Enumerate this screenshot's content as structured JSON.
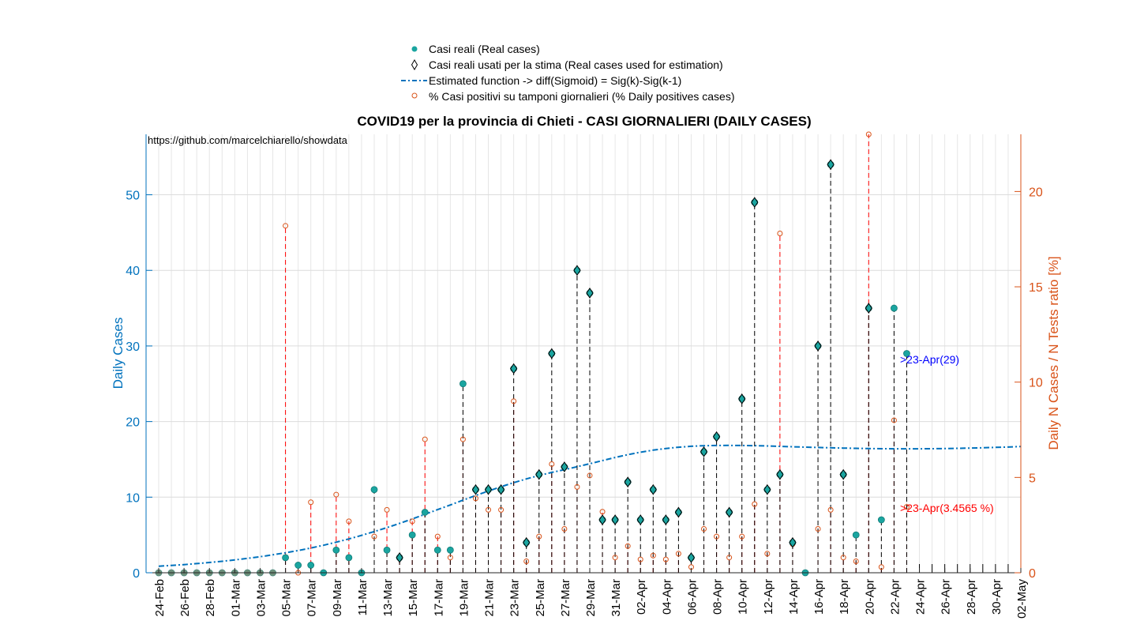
{
  "chart_data": {
    "type": "scatter",
    "title": "COVID19 per la provincia di Chieti - CASI GIORNALIERI (DAILY CASES)",
    "source_text": "https://github.com/marcelchiarello/showdata",
    "ylabel_left": "Daily Cases",
    "ylabel_right": "Daily N Cases / N Tests ratio [%]",
    "ylim_left": [
      0,
      58
    ],
    "ylim_right": [
      0,
      23
    ],
    "yticks_left": [
      "0",
      "10",
      "20",
      "30",
      "40",
      "50"
    ],
    "yticks_right": [
      "0",
      "5",
      "10",
      "15",
      "20"
    ],
    "grid": true,
    "legend_position": "top-center",
    "x_dates": [
      "24-Feb",
      "25-Feb",
      "26-Feb",
      "27-Feb",
      "28-Feb",
      "29-Feb",
      "01-Mar",
      "02-Mar",
      "03-Mar",
      "04-Mar",
      "05-Mar",
      "06-Mar",
      "07-Mar",
      "08-Mar",
      "09-Mar",
      "10-Mar",
      "11-Mar",
      "12-Mar",
      "13-Mar",
      "14-Mar",
      "15-Mar",
      "16-Mar",
      "17-Mar",
      "18-Mar",
      "19-Mar",
      "20-Mar",
      "21-Mar",
      "22-Mar",
      "23-Mar",
      "24-Mar",
      "25-Mar",
      "26-Mar",
      "27-Mar",
      "28-Mar",
      "29-Mar",
      "30-Mar",
      "31-Mar",
      "01-Apr",
      "02-Apr",
      "03-Apr",
      "04-Apr",
      "05-Apr",
      "06-Apr",
      "07-Apr",
      "08-Apr",
      "09-Apr",
      "10-Apr",
      "11-Apr",
      "12-Apr",
      "13-Apr",
      "14-Apr",
      "15-Apr",
      "16-Apr",
      "17-Apr",
      "18-Apr",
      "19-Apr",
      "20-Apr",
      "21-Apr",
      "22-Apr",
      "23-Apr",
      "24-Apr",
      "25-Apr",
      "26-Apr",
      "27-Apr",
      "28-Apr",
      "29-Apr",
      "30-Apr",
      "01-May",
      "02-May"
    ],
    "x_tick_labels": [
      "24-Feb",
      "26-Feb",
      "28-Feb",
      "01-Mar",
      "03-Mar",
      "05-Mar",
      "07-Mar",
      "09-Mar",
      "11-Mar",
      "13-Mar",
      "15-Mar",
      "17-Mar",
      "19-Mar",
      "21-Mar",
      "23-Mar",
      "25-Mar",
      "27-Mar",
      "29-Mar",
      "31-Mar",
      "02-Apr",
      "04-Apr",
      "06-Apr",
      "08-Apr",
      "10-Apr",
      "12-Apr",
      "14-Apr",
      "16-Apr",
      "18-Apr",
      "20-Apr",
      "22-Apr",
      "24-Apr",
      "26-Apr",
      "28-Apr",
      "30-Apr",
      "02-May"
    ],
    "series": [
      {
        "name": "Casi reali (Real cases)",
        "color": "#1AA5A0",
        "values": [
          0,
          0,
          0,
          0,
          0,
          0,
          0,
          0,
          0,
          0,
          2,
          1,
          1,
          0,
          3,
          2,
          0,
          11,
          3,
          2,
          5,
          8,
          3,
          3,
          25,
          11,
          11,
          11,
          27,
          4,
          13,
          29,
          14,
          40,
          37,
          7,
          7,
          12,
          7,
          11,
          7,
          8,
          2,
          16,
          18,
          8,
          23,
          49,
          11,
          13,
          4,
          0,
          30,
          54,
          13,
          5,
          35,
          7,
          35,
          29
        ]
      },
      {
        "name": "Casi reali usati per la stima (Real cases used for estimation)",
        "color": "#000000",
        "values": [
          0,
          0,
          0,
          0,
          0,
          0,
          0,
          0,
          0,
          0,
          0,
          0,
          0,
          0,
          0,
          0,
          0,
          0,
          0,
          2,
          0,
          0,
          0,
          0,
          0,
          11,
          11,
          11,
          27,
          4,
          13,
          29,
          14,
          40,
          37,
          7,
          7,
          12,
          7,
          11,
          7,
          8,
          2,
          16,
          18,
          8,
          23,
          49,
          11,
          13,
          4,
          0,
          30,
          54,
          13,
          0,
          35,
          0,
          0,
          0
        ]
      },
      {
        "name": "Estimated function -> diff(Sigmoid) = Sig(k)-Sig(k-1)",
        "color": "#0072BD",
        "values": [
          0.87,
          0.97,
          1.08,
          1.21,
          1.36,
          1.52,
          1.7,
          1.9,
          2.12,
          2.37,
          2.64,
          2.94,
          3.27,
          3.64,
          4.04,
          4.47,
          4.94,
          5.44,
          5.97,
          6.53,
          7.12,
          7.73,
          8.35,
          8.97,
          9.6,
          10.22,
          10.81,
          11.38,
          11.91,
          12.41,
          12.86,
          13.27,
          13.64,
          14.02,
          14.42,
          14.84,
          15.25,
          15.62,
          15.95,
          16.22,
          16.44,
          16.61,
          16.73,
          16.8,
          16.84,
          16.85,
          16.84,
          16.81,
          16.77,
          16.72,
          16.67,
          16.62,
          16.57,
          16.53,
          16.49,
          16.46,
          16.43,
          16.41,
          16.4,
          16.4,
          16.4,
          16.41,
          16.43,
          16.46,
          16.49,
          16.53,
          16.58,
          16.63,
          16.7
        ]
      },
      {
        "name": "% Casi positivi su tamponi giornalieri (% Daily positives cases)",
        "color": "#D95319",
        "values": [
          0,
          0,
          0,
          0,
          0,
          0,
          0,
          0,
          0,
          0,
          18.2,
          0,
          3.7,
          0,
          4.1,
          2.7,
          0,
          1.9,
          3.3,
          0.8,
          2.7,
          7.0,
          1.9,
          0.8,
          7.0,
          3.9,
          3.3,
          3.3,
          9.0,
          0.6,
          1.9,
          5.7,
          2.3,
          4.5,
          5.1,
          3.2,
          0.8,
          1.4,
          0.7,
          0.9,
          0.7,
          1.0,
          0.3,
          2.3,
          1.9,
          0.8,
          1.9,
          3.6,
          1.0,
          17.8,
          1.5,
          0,
          2.3,
          3.3,
          0.8,
          0.6,
          23.0,
          0.3,
          8.0,
          3.4565
        ]
      }
    ],
    "annotations": [
      {
        "text": ">23-Apr(29)",
        "color": "#0000ff"
      },
      {
        "text": ">23-Apr(3.4565 %)",
        "color": "#ff0000"
      }
    ]
  }
}
